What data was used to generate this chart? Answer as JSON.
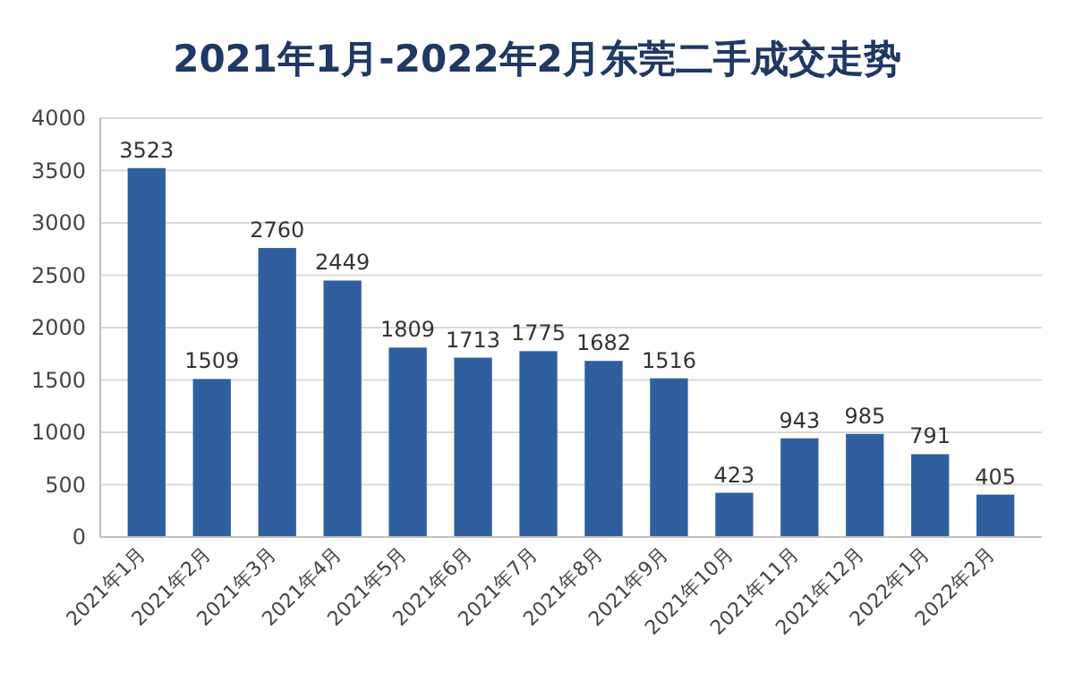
{
  "chart_data": {
    "type": "bar",
    "title": "2021年1月-2022年2月东莞二手成交走势",
    "categories": [
      "2021年1月",
      "2021年2月",
      "2021年3月",
      "2021年4月",
      "2021年5月",
      "2021年6月",
      "2021年7月",
      "2021年8月",
      "2021年9月",
      "2021年10月",
      "2021年11月",
      "2021年12月",
      "2022年1月",
      "2022年2月"
    ],
    "values": [
      3523,
      1509,
      2760,
      2449,
      1809,
      1713,
      1775,
      1682,
      1516,
      423,
      943,
      985,
      791,
      405
    ],
    "color": "#2f5f9e",
    "ylim": [
      0,
      4000
    ],
    "yticks": [
      0,
      500,
      1000,
      1500,
      2000,
      2500,
      3000,
      3500,
      4000
    ],
    "grid": "y",
    "data_labels": true
  }
}
